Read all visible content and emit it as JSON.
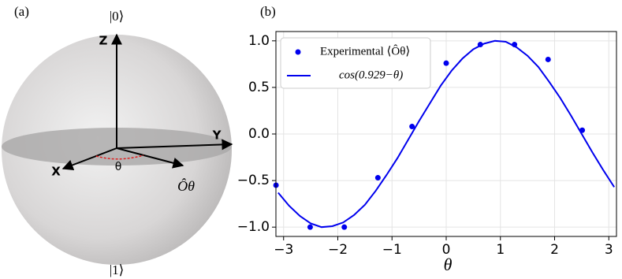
{
  "panel_a": {
    "label": "(a)",
    "ket0": "|0⟩",
    "ket1": "|1⟩",
    "z_axis": "Z",
    "y_axis": "Y",
    "x_axis": "X",
    "angle": "θ",
    "operator": "Ôθ"
  },
  "chart_data": {
    "type": "line",
    "panel_label": "(b)",
    "x_label": "θ",
    "xlim": [
      -3.1416,
      3.1416
    ],
    "ylim": [
      -1.1,
      1.1
    ],
    "xticks": [
      {
        "value": -3,
        "label": "−3"
      },
      {
        "value": -2,
        "label": "−2"
      },
      {
        "value": -1,
        "label": "−1"
      },
      0,
      1,
      2,
      3
    ],
    "yticks": [
      {
        "value": -1,
        "label": "−1.0"
      },
      {
        "value": -0.5,
        "label": "−0.5"
      },
      {
        "value": 0,
        "label": "0.0"
      },
      0.5,
      {
        "value": 1,
        "label": "1.0"
      }
    ],
    "grid": true,
    "legend": "upper left",
    "series": [
      {
        "name": "Experimental ⟨Ôθ⟩",
        "color": "#0000ee",
        "mode": "markers",
        "x": [
          -3.14,
          -2.51,
          -1.88,
          -1.26,
          -0.63,
          0,
          0.63,
          1.26,
          1.88,
          2.51
        ],
        "values": [
          -0.55,
          -1.0,
          -1.0,
          -0.47,
          0.08,
          0.76,
          0.96,
          0.96,
          0.8,
          0.04
        ]
      },
      {
        "name": "cos(0.929−θ)",
        "color": "#0000ee",
        "mode": "line",
        "x": [
          -3.1,
          -2.9,
          -2.7,
          -2.5,
          -2.3,
          -2.1,
          -1.9,
          -1.7,
          -1.5,
          -1.3,
          -1.1,
          -0.9,
          -0.7,
          -0.5,
          -0.3,
          -0.1,
          0.1,
          0.3,
          0.5,
          0.7,
          0.9,
          1.1,
          1.3,
          1.5,
          1.7,
          1.9,
          2.1,
          2.3,
          2.5,
          2.7,
          2.9,
          3.1
        ],
        "values": [
          -0.63,
          -0.77,
          -0.88,
          -0.96,
          -1.0,
          -0.99,
          -0.95,
          -0.87,
          -0.76,
          -0.61,
          -0.44,
          -0.26,
          -0.06,
          0.14,
          0.33,
          0.52,
          0.68,
          0.81,
          0.91,
          0.97,
          1.0,
          0.99,
          0.93,
          0.84,
          0.72,
          0.56,
          0.39,
          0.2,
          0.0,
          -0.2,
          -0.39,
          -0.57
        ]
      }
    ]
  }
}
